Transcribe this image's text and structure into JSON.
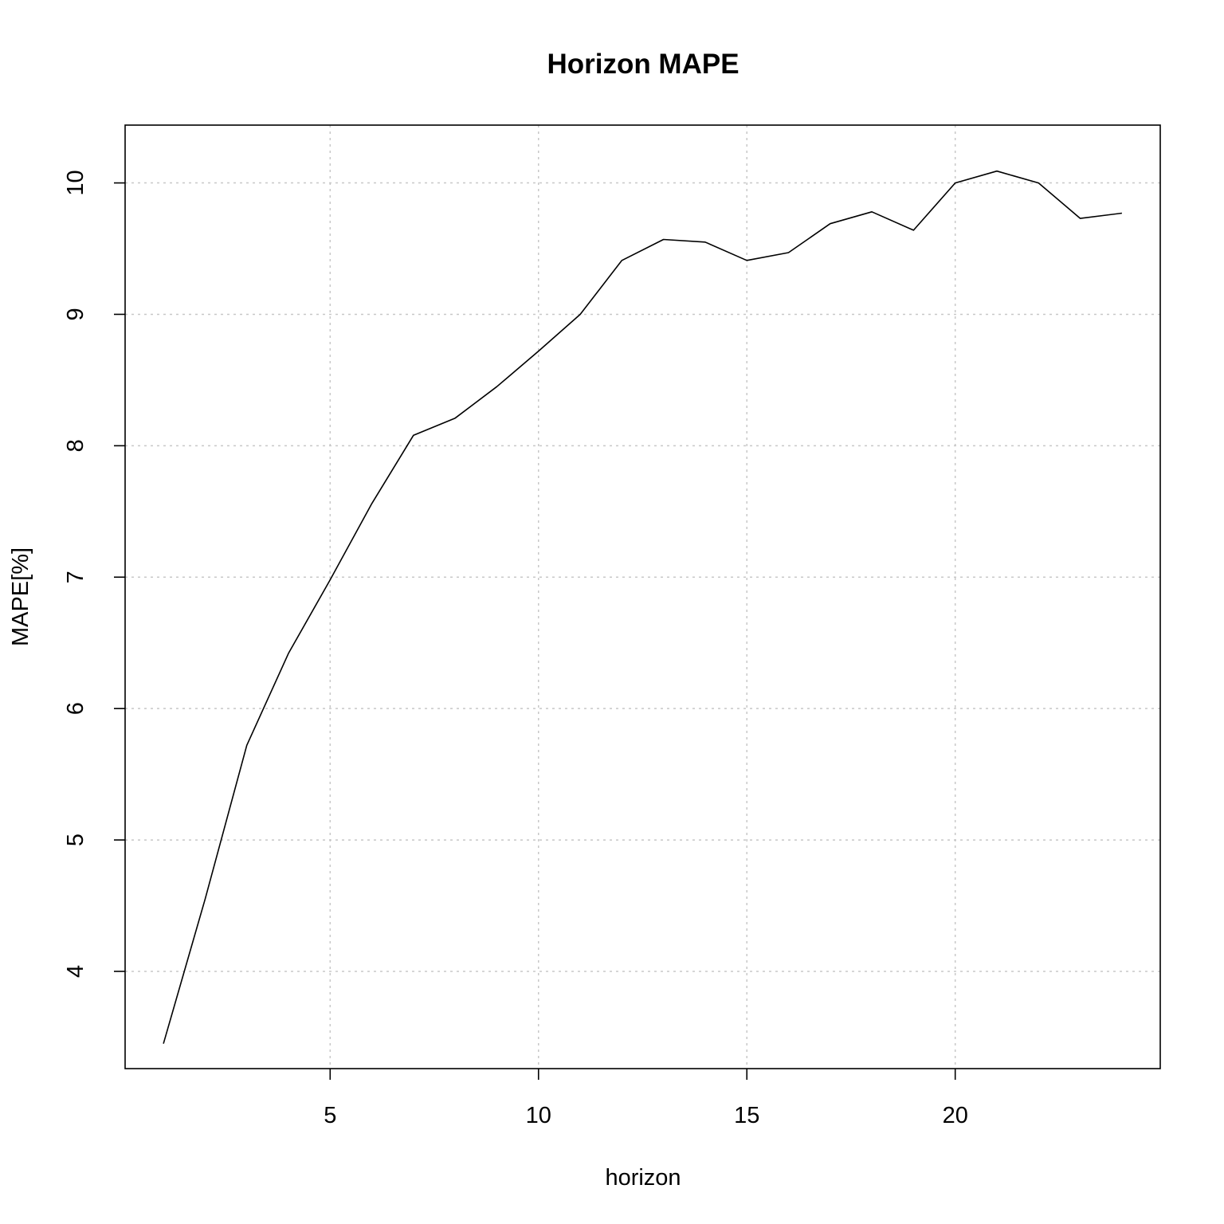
{
  "chart_data": {
    "type": "line",
    "title": "Horizon MAPE",
    "xlabel": "horizon",
    "ylabel": "MAPE[%]",
    "xlim": [
      0.08,
      24.92
    ],
    "ylim": [
      3.26,
      10.44
    ],
    "x_ticks": [
      5,
      10,
      15,
      20
    ],
    "y_ticks": [
      4,
      5,
      6,
      7,
      8,
      9,
      10
    ],
    "grid": true,
    "x": [
      1,
      2,
      3,
      4,
      5,
      6,
      7,
      8,
      9,
      10,
      11,
      12,
      13,
      14,
      15,
      16,
      17,
      18,
      19,
      20,
      21,
      22,
      23,
      24
    ],
    "series": [
      {
        "values": [
          3.45,
          4.55,
          5.72,
          6.42,
          6.98,
          7.56,
          8.08,
          8.21,
          8.45,
          8.72,
          9.0,
          9.41,
          9.57,
          9.55,
          9.41,
          9.47,
          9.69,
          9.78,
          9.64,
          10.0,
          10.09,
          10.0,
          9.73,
          9.77
        ]
      }
    ]
  }
}
